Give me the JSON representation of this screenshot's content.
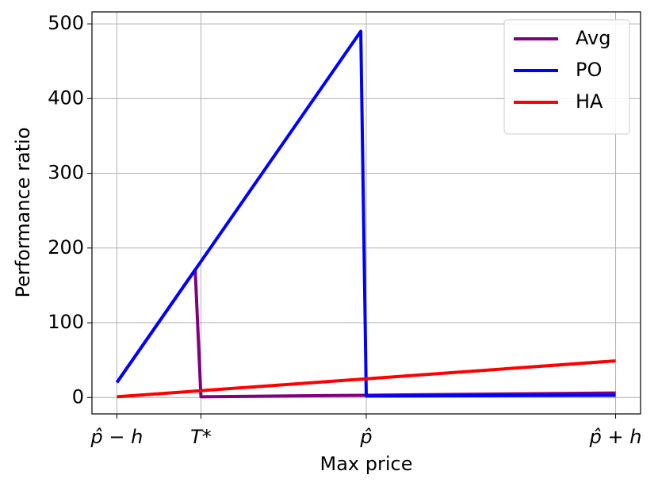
{
  "chart_data": {
    "type": "line",
    "xlabel": "Max price",
    "ylabel": "Performance ratio",
    "xlim": [
      -0.1,
      2.1
    ],
    "ylim": [
      -22,
      516
    ],
    "xticks": [
      {
        "value": 0,
        "label": "p̂ − h"
      },
      {
        "value": 0.337,
        "label": "T*"
      },
      {
        "value": 1,
        "label": "p̂"
      },
      {
        "value": 2,
        "label": "p̂ + h"
      }
    ],
    "yticks": [
      0,
      100,
      200,
      300,
      400,
      500
    ],
    "grid": true,
    "legend": "upper right",
    "series": [
      {
        "name": "Avg",
        "color": "#800080",
        "x": [
          0,
          0.314,
          0.337,
          1,
          2
        ],
        "values": [
          20,
          171,
          1,
          3,
          6
        ]
      },
      {
        "name": "PO",
        "color": "#0000ff",
        "x": [
          0,
          0.978,
          1,
          2
        ],
        "values": [
          20,
          490,
          2,
          3
        ]
      },
      {
        "name": "HA",
        "color": "#ff0000",
        "x": [
          0,
          2
        ],
        "values": [
          1,
          49
        ]
      }
    ]
  }
}
